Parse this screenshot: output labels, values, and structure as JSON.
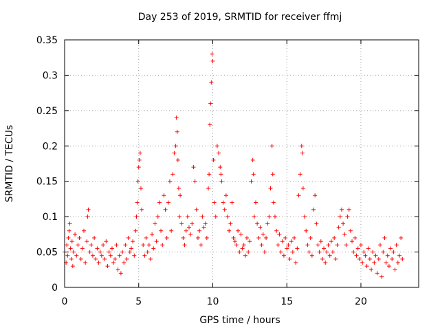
{
  "chart_data": {
    "type": "scatter",
    "title": "Day 253 of 2019, SRMTID for receiver ffmj",
    "xlabel": "GPS time / hours",
    "ylabel": "SRMTID / TECUs",
    "xlim": [
      0,
      23.9
    ],
    "ylim": [
      0,
      0.35
    ],
    "x_ticks": [
      0,
      5,
      10,
      15,
      20
    ],
    "y_ticks": [
      0,
      0.05,
      0.1,
      0.15,
      0.2,
      0.25,
      0.3,
      0.35
    ],
    "x_tick_labels": [
      "0",
      "5",
      "10",
      "15",
      "20"
    ],
    "y_tick_labels": [
      "0",
      "0.05",
      "0.1",
      "0.15",
      "0.2",
      "0.25",
      "0.3",
      "0.35"
    ],
    "grid": true,
    "marker": "plus",
    "color": "#ff0000",
    "series": [
      {
        "name": "SRMTID",
        "points": [
          [
            0.0,
            0.05
          ],
          [
            0.1,
            0.035
          ],
          [
            0.15,
            0.06
          ],
          [
            0.2,
            0.045
          ],
          [
            0.25,
            0.07
          ],
          [
            0.3,
            0.08
          ],
          [
            0.35,
            0.09
          ],
          [
            0.4,
            0.055
          ],
          [
            0.45,
            0.04
          ],
          [
            0.5,
            0.065
          ],
          [
            0.55,
            0.03
          ],
          [
            0.6,
            0.05
          ],
          [
            0.7,
            0.075
          ],
          [
            0.8,
            0.045
          ],
          [
            0.9,
            0.06
          ],
          [
            1.0,
            0.07
          ],
          [
            1.1,
            0.04
          ],
          [
            1.2,
            0.055
          ],
          [
            1.3,
            0.08
          ],
          [
            1.4,
            0.035
          ],
          [
            1.5,
            0.065
          ],
          [
            1.55,
            0.1
          ],
          [
            1.6,
            0.11
          ],
          [
            1.7,
            0.05
          ],
          [
            1.8,
            0.06
          ],
          [
            1.9,
            0.045
          ],
          [
            2.0,
            0.07
          ],
          [
            2.1,
            0.04
          ],
          [
            2.2,
            0.055
          ],
          [
            2.3,
            0.035
          ],
          [
            2.4,
            0.05
          ],
          [
            2.5,
            0.045
          ],
          [
            2.6,
            0.06
          ],
          [
            2.7,
            0.04
          ],
          [
            2.8,
            0.065
          ],
          [
            2.9,
            0.03
          ],
          [
            3.0,
            0.05
          ],
          [
            3.1,
            0.045
          ],
          [
            3.2,
            0.055
          ],
          [
            3.3,
            0.035
          ],
          [
            3.4,
            0.04
          ],
          [
            3.5,
            0.06
          ],
          [
            3.6,
            0.025
          ],
          [
            3.7,
            0.045
          ],
          [
            3.8,
            0.02
          ],
          [
            3.9,
            0.05
          ],
          [
            4.0,
            0.035
          ],
          [
            4.1,
            0.06
          ],
          [
            4.2,
            0.04
          ],
          [
            4.3,
            0.07
          ],
          [
            4.4,
            0.05
          ],
          [
            4.5,
            0.055
          ],
          [
            4.6,
            0.065
          ],
          [
            4.7,
            0.045
          ],
          [
            4.8,
            0.08
          ],
          [
            4.85,
            0.1
          ],
          [
            4.9,
            0.12
          ],
          [
            4.95,
            0.15
          ],
          [
            5.0,
            0.17
          ],
          [
            5.05,
            0.18
          ],
          [
            5.1,
            0.19
          ],
          [
            5.15,
            0.14
          ],
          [
            5.2,
            0.11
          ],
          [
            5.3,
            0.06
          ],
          [
            5.4,
            0.045
          ],
          [
            5.5,
            0.07
          ],
          [
            5.6,
            0.05
          ],
          [
            5.7,
            0.06
          ],
          [
            5.8,
            0.04
          ],
          [
            5.9,
            0.075
          ],
          [
            6.0,
            0.055
          ],
          [
            6.1,
            0.09
          ],
          [
            6.2,
            0.065
          ],
          [
            6.3,
            0.1
          ],
          [
            6.4,
            0.12
          ],
          [
            6.5,
            0.08
          ],
          [
            6.6,
            0.06
          ],
          [
            6.7,
            0.13
          ],
          [
            6.8,
            0.11
          ],
          [
            6.9,
            0.07
          ],
          [
            7.0,
            0.12
          ],
          [
            7.1,
            0.15
          ],
          [
            7.2,
            0.08
          ],
          [
            7.3,
            0.16
          ],
          [
            7.4,
            0.19
          ],
          [
            7.5,
            0.2
          ],
          [
            7.55,
            0.24
          ],
          [
            7.6,
            0.22
          ],
          [
            7.65,
            0.18
          ],
          [
            7.7,
            0.14
          ],
          [
            7.75,
            0.1
          ],
          [
            7.8,
            0.13
          ],
          [
            7.9,
            0.09
          ],
          [
            8.0,
            0.07
          ],
          [
            8.1,
            0.06
          ],
          [
            8.2,
            0.08
          ],
          [
            8.3,
            0.1
          ],
          [
            8.4,
            0.085
          ],
          [
            8.5,
            0.075
          ],
          [
            8.6,
            0.09
          ],
          [
            8.7,
            0.17
          ],
          [
            8.8,
            0.15
          ],
          [
            8.9,
            0.11
          ],
          [
            9.0,
            0.07
          ],
          [
            9.1,
            0.08
          ],
          [
            9.2,
            0.06
          ],
          [
            9.3,
            0.1
          ],
          [
            9.4,
            0.085
          ],
          [
            9.5,
            0.09
          ],
          [
            9.6,
            0.07
          ],
          [
            9.7,
            0.14
          ],
          [
            9.75,
            0.16
          ],
          [
            9.8,
            0.23
          ],
          [
            9.85,
            0.26
          ],
          [
            9.9,
            0.29
          ],
          [
            9.95,
            0.33
          ],
          [
            10.0,
            0.32
          ],
          [
            10.05,
            0.18
          ],
          [
            10.1,
            0.12
          ],
          [
            10.2,
            0.1
          ],
          [
            10.3,
            0.2
          ],
          [
            10.4,
            0.19
          ],
          [
            10.5,
            0.17
          ],
          [
            10.55,
            0.16
          ],
          [
            10.6,
            0.15
          ],
          [
            10.7,
            0.12
          ],
          [
            10.8,
            0.11
          ],
          [
            10.9,
            0.13
          ],
          [
            11.0,
            0.1
          ],
          [
            11.1,
            0.08
          ],
          [
            11.2,
            0.09
          ],
          [
            11.3,
            0.12
          ],
          [
            11.4,
            0.07
          ],
          [
            11.5,
            0.065
          ],
          [
            11.6,
            0.06
          ],
          [
            11.7,
            0.08
          ],
          [
            11.8,
            0.05
          ],
          [
            11.9,
            0.075
          ],
          [
            12.0,
            0.055
          ],
          [
            12.1,
            0.06
          ],
          [
            12.2,
            0.045
          ],
          [
            12.3,
            0.07
          ],
          [
            12.4,
            0.05
          ],
          [
            12.5,
            0.065
          ],
          [
            12.6,
            0.15
          ],
          [
            12.7,
            0.18
          ],
          [
            12.75,
            0.16
          ],
          [
            12.8,
            0.1
          ],
          [
            12.9,
            0.12
          ],
          [
            13.0,
            0.09
          ],
          [
            13.1,
            0.07
          ],
          [
            13.2,
            0.085
          ],
          [
            13.3,
            0.06
          ],
          [
            13.4,
            0.075
          ],
          [
            13.5,
            0.05
          ],
          [
            13.6,
            0.07
          ],
          [
            13.7,
            0.09
          ],
          [
            13.8,
            0.1
          ],
          [
            13.9,
            0.14
          ],
          [
            14.0,
            0.2
          ],
          [
            14.05,
            0.16
          ],
          [
            14.1,
            0.12
          ],
          [
            14.2,
            0.1
          ],
          [
            14.3,
            0.08
          ],
          [
            14.4,
            0.06
          ],
          [
            14.5,
            0.075
          ],
          [
            14.6,
            0.05
          ],
          [
            14.7,
            0.065
          ],
          [
            14.8,
            0.045
          ],
          [
            14.9,
            0.07
          ],
          [
            15.0,
            0.055
          ],
          [
            15.1,
            0.06
          ],
          [
            15.2,
            0.04
          ],
          [
            15.3,
            0.065
          ],
          [
            15.4,
            0.05
          ],
          [
            15.5,
            0.07
          ],
          [
            15.6,
            0.035
          ],
          [
            15.7,
            0.055
          ],
          [
            15.8,
            0.13
          ],
          [
            15.9,
            0.16
          ],
          [
            16.0,
            0.2
          ],
          [
            16.05,
            0.19
          ],
          [
            16.1,
            0.14
          ],
          [
            16.2,
            0.1
          ],
          [
            16.3,
            0.08
          ],
          [
            16.4,
            0.06
          ],
          [
            16.5,
            0.05
          ],
          [
            16.6,
            0.07
          ],
          [
            16.7,
            0.045
          ],
          [
            16.8,
            0.11
          ],
          [
            16.9,
            0.13
          ],
          [
            17.0,
            0.09
          ],
          [
            17.1,
            0.06
          ],
          [
            17.2,
            0.05
          ],
          [
            17.3,
            0.065
          ],
          [
            17.4,
            0.04
          ],
          [
            17.5,
            0.055
          ],
          [
            17.6,
            0.035
          ],
          [
            17.7,
            0.05
          ],
          [
            17.8,
            0.06
          ],
          [
            17.9,
            0.045
          ],
          [
            18.0,
            0.065
          ],
          [
            18.1,
            0.05
          ],
          [
            18.2,
            0.07
          ],
          [
            18.3,
            0.04
          ],
          [
            18.4,
            0.06
          ],
          [
            18.5,
            0.085
          ],
          [
            18.6,
            0.1
          ],
          [
            18.7,
            0.11
          ],
          [
            18.8,
            0.09
          ],
          [
            18.9,
            0.075
          ],
          [
            19.0,
            0.06
          ],
          [
            19.1,
            0.1
          ],
          [
            19.2,
            0.11
          ],
          [
            19.3,
            0.08
          ],
          [
            19.4,
            0.065
          ],
          [
            19.5,
            0.05
          ],
          [
            19.6,
            0.07
          ],
          [
            19.7,
            0.045
          ],
          [
            19.8,
            0.055
          ],
          [
            19.9,
            0.04
          ],
          [
            20.0,
            0.06
          ],
          [
            20.1,
            0.035
          ],
          [
            20.2,
            0.05
          ],
          [
            20.3,
            0.045
          ],
          [
            20.4,
            0.03
          ],
          [
            20.5,
            0.055
          ],
          [
            20.6,
            0.04
          ],
          [
            20.7,
            0.025
          ],
          [
            20.8,
            0.05
          ],
          [
            20.9,
            0.035
          ],
          [
            21.0,
            0.045
          ],
          [
            21.1,
            0.02
          ],
          [
            21.2,
            0.04
          ],
          [
            21.3,
            0.06
          ],
          [
            21.4,
            0.015
          ],
          [
            21.5,
            0.05
          ],
          [
            21.6,
            0.07
          ],
          [
            21.7,
            0.035
          ],
          [
            21.8,
            0.045
          ],
          [
            21.9,
            0.03
          ],
          [
            22.0,
            0.055
          ],
          [
            22.1,
            0.04
          ],
          [
            22.2,
            0.05
          ],
          [
            22.3,
            0.025
          ],
          [
            22.4,
            0.06
          ],
          [
            22.5,
            0.035
          ],
          [
            22.6,
            0.045
          ],
          [
            22.7,
            0.07
          ],
          [
            22.8,
            0.04
          ]
        ]
      }
    ]
  }
}
